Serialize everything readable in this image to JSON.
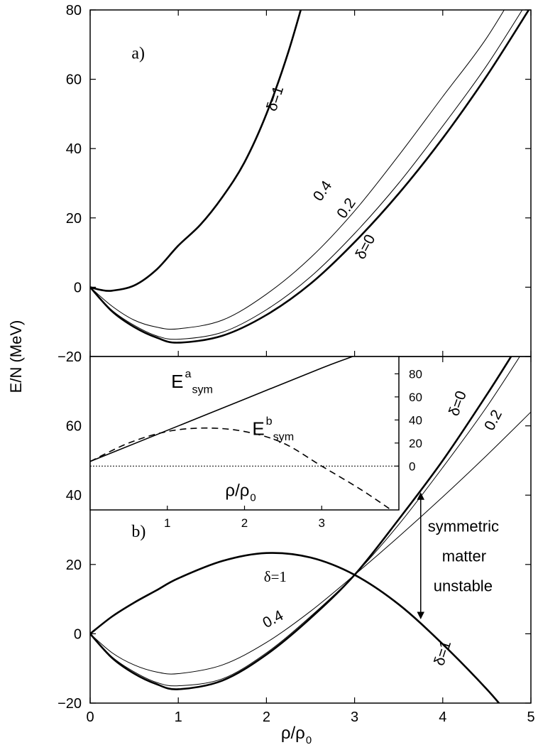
{
  "chart_data": [
    {
      "type": "line",
      "annotation": "a)",
      "xlim": [
        0,
        5
      ],
      "ylim": [
        -20,
        80
      ],
      "xtick_marks": [
        0,
        1,
        2,
        3,
        4,
        5
      ],
      "yticks": [
        {
          "value": -20,
          "label": "−20"
        },
        0,
        20,
        40,
        60,
        80
      ],
      "series": [
        {
          "name": "δ=1",
          "color": "#000000",
          "linewidth": 2.6,
          "x": [
            0,
            0.125,
            0.25,
            0.5,
            0.75,
            1,
            1.25,
            1.5,
            1.75,
            2,
            2.25,
            2.5
          ],
          "values": [
            0,
            -0.8,
            -1,
            0.5,
            5,
            12,
            18,
            26,
            36,
            50,
            68,
            90
          ]
        },
        {
          "name": "0.4",
          "color": "#000000",
          "linewidth": 1,
          "x": [
            0,
            0.25,
            0.5,
            0.75,
            1,
            1.5,
            2,
            2.5,
            3,
            3.5,
            4,
            4.5,
            5
          ],
          "values": [
            0,
            -5.5,
            -9.5,
            -11.5,
            -12,
            -9.5,
            -2,
            8.5,
            22,
            38,
            55,
            72,
            93
          ]
        },
        {
          "name": "0.2",
          "color": "#000000",
          "linewidth": 1,
          "x": [
            0,
            0.25,
            0.5,
            0.75,
            1,
            1.5,
            2,
            2.5,
            3,
            3.5,
            4,
            4.5,
            5
          ],
          "values": [
            0,
            -6.7,
            -11,
            -14,
            -15,
            -13,
            -6.5,
            3,
            15.5,
            30,
            46.5,
            64,
            84
          ]
        },
        {
          "name": "δ=0",
          "color": "#000000",
          "linewidth": 2.6,
          "x": [
            0,
            0.25,
            0.5,
            0.75,
            1,
            1.5,
            2,
            2.5,
            3,
            3.5,
            4,
            4.5,
            5
          ],
          "values": [
            0,
            -7,
            -11.5,
            -14.5,
            -16,
            -14,
            -8,
            1,
            13,
            27,
            43,
            61,
            81
          ]
        }
      ]
    },
    {
      "type": "line",
      "annotation": "b)",
      "xlim": [
        0,
        5
      ],
      "ylim": [
        -20,
        80
      ],
      "xticks": [
        0,
        1,
        2,
        3,
        4,
        5
      ],
      "yticks": [
        {
          "value": -20,
          "label": "−20"
        },
        0,
        20,
        40,
        60
      ],
      "xlabel": {
        "base": "ρ/ρ",
        "sub": "0"
      },
      "ylabel": "E/N (MeV)",
      "arrow": {
        "x": 3.75,
        "y": [
          41,
          4
        ]
      },
      "arrow_text": [
        "symmetric",
        "matter",
        "unstable"
      ],
      "series": [
        {
          "name": "δ=1",
          "color": "#000000",
          "linewidth": 2.6,
          "x": [
            0,
            0.25,
            0.5,
            0.75,
            1,
            1.5,
            2,
            2.5,
            3,
            3.5,
            4,
            4.5,
            4.75
          ],
          "values": [
            0,
            5,
            9,
            12.5,
            16,
            21,
            23.3,
            22,
            17,
            8.5,
            -3,
            -16,
            -23.5
          ]
        },
        {
          "name": "0.4",
          "color": "#000000",
          "linewidth": 1,
          "x": [
            0,
            0.25,
            0.5,
            0.75,
            1,
            1.5,
            2,
            2.5,
            3,
            3.5,
            4,
            4.5,
            5
          ],
          "values": [
            0,
            -5.5,
            -9,
            -11,
            -11.5,
            -9,
            -2.5,
            6.5,
            17,
            28,
            39.5,
            51.5,
            64
          ]
        },
        {
          "name": "0.2",
          "color": "#000000",
          "linewidth": 1,
          "x": [
            0,
            0.25,
            0.5,
            0.75,
            1,
            1.5,
            2,
            2.5,
            3,
            3.5,
            4,
            4.5,
            5
          ],
          "values": [
            0,
            -6.7,
            -11,
            -14,
            -15,
            -13,
            -5.5,
            5,
            17,
            31.5,
            48,
            65.5,
            85
          ]
        },
        {
          "name": "δ=0",
          "color": "#000000",
          "linewidth": 2.6,
          "x": [
            0,
            0.25,
            0.5,
            0.75,
            1,
            1.5,
            2,
            2.5,
            3,
            3.5,
            4,
            4.5,
            4.8
          ],
          "values": [
            0,
            -7,
            -11.5,
            -14.5,
            -16,
            -13.5,
            -6,
            4.5,
            17,
            33,
            50,
            69,
            81
          ]
        }
      ]
    },
    {
      "type": "line",
      "xlim": [
        0,
        4
      ],
      "ylim": [
        -38,
        95
      ],
      "xticks": [
        1,
        2,
        3
      ],
      "yticks": [
        0,
        20,
        40,
        60,
        80
      ],
      "xlabel": {
        "base": "ρ/ρ",
        "sub": "0"
      },
      "hline": 0,
      "series": [
        {
          "name": {
            "base": "E",
            "sup": "a",
            "sub": "sym"
          },
          "color": "#000000",
          "linewidth": 1.6,
          "dash": false,
          "x": [
            0,
            1,
            2,
            3,
            3.4
          ],
          "values": [
            4,
            31,
            58,
            85,
            95
          ]
        },
        {
          "name": {
            "base": "E",
            "sup": "b",
            "sub": "sym"
          },
          "color": "#000000",
          "linewidth": 1.6,
          "dash": true,
          "x": [
            0,
            0.5,
            1,
            1.5,
            2,
            2.5,
            3,
            3.5,
            3.9
          ],
          "values": [
            4,
            20,
            30,
            33,
            30,
            20,
            0,
            -20,
            -38
          ]
        }
      ]
    }
  ]
}
